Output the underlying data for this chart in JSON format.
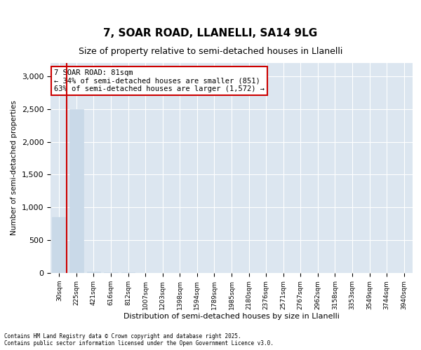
{
  "title_line1": "7, SOAR ROAD, LLANELLI, SA14 9LG",
  "title_line2": "Size of property relative to semi-detached houses in Llanelli",
  "xlabel": "Distribution of semi-detached houses by size in Llanelli",
  "ylabel": "Number of semi-detached properties",
  "categories": [
    "30sqm",
    "225sqm",
    "421sqm",
    "616sqm",
    "812sqm",
    "1007sqm",
    "1203sqm",
    "1398sqm",
    "1594sqm",
    "1789sqm",
    "1985sqm",
    "2180sqm",
    "2376sqm",
    "2571sqm",
    "2767sqm",
    "2962sqm",
    "3158sqm",
    "3353sqm",
    "3549sqm",
    "3744sqm",
    "3940sqm"
  ],
  "values": [
    851,
    2500,
    17,
    12,
    8,
    5,
    4,
    3,
    2,
    2,
    1,
    1,
    1,
    1,
    0,
    0,
    0,
    0,
    0,
    0,
    0
  ],
  "bar_color": "#c9d9e8",
  "bar_edge_color": "#c9d9e8",
  "annotation_text": "7 SOAR ROAD: 81sqm\n← 34% of semi-detached houses are smaller (851)\n63% of semi-detached houses are larger (1,572) →",
  "annotation_box_color": "#ffffff",
  "annotation_box_edge_color": "#cc0000",
  "vline_x": 0.45,
  "ylim": [
    0,
    3200
  ],
  "yticks": [
    0,
    500,
    1000,
    1500,
    2000,
    2500,
    3000
  ],
  "background_color": "#dce6f0",
  "footer_text": "Contains HM Land Registry data © Crown copyright and database right 2025.\nContains public sector information licensed under the Open Government Licence v3.0.",
  "figsize": [
    6.0,
    5.0
  ],
  "dpi": 100
}
